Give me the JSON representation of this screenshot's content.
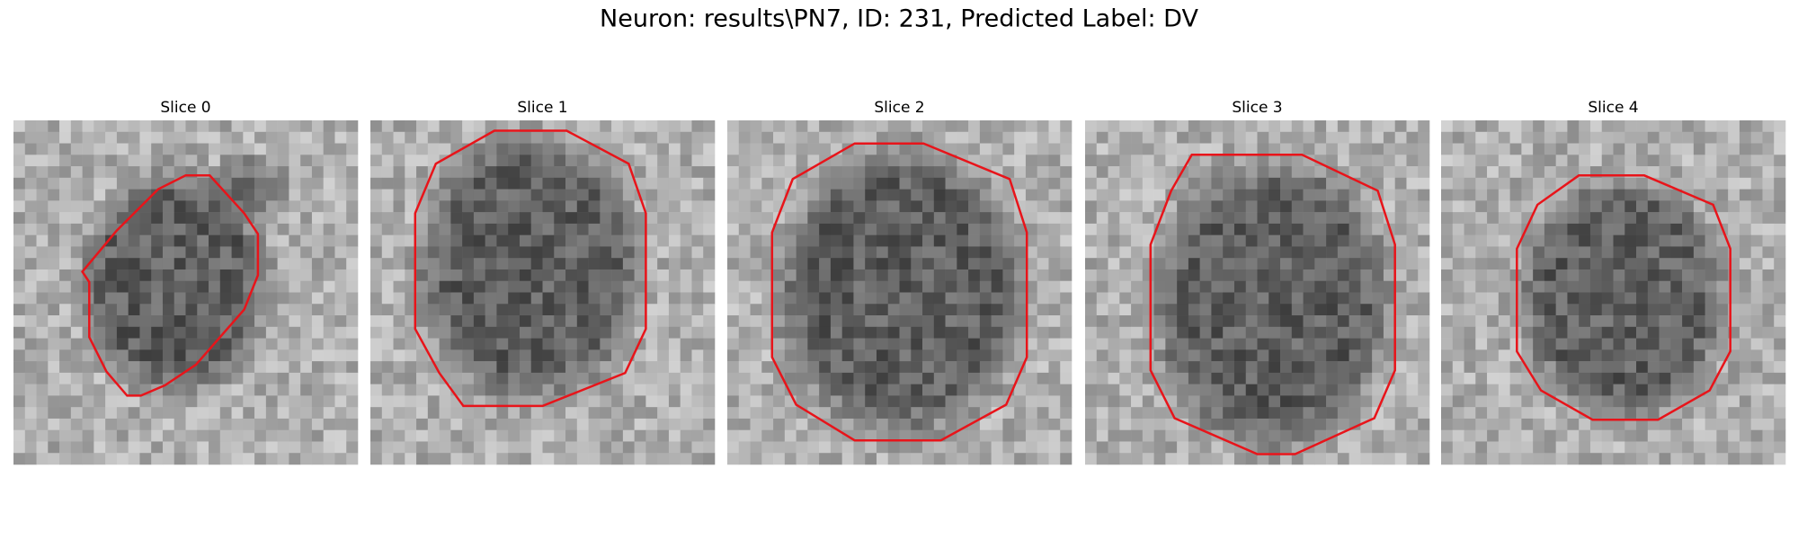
{
  "title": "Neuron: results\\PN7, ID: 231, Predicted Label: DV",
  "panels": [
    {
      "title": "Slice 0"
    },
    {
      "title": "Slice 1"
    },
    {
      "title": "Slice 2"
    },
    {
      "title": "Slice 3"
    },
    {
      "title": "Slice 4"
    }
  ]
}
